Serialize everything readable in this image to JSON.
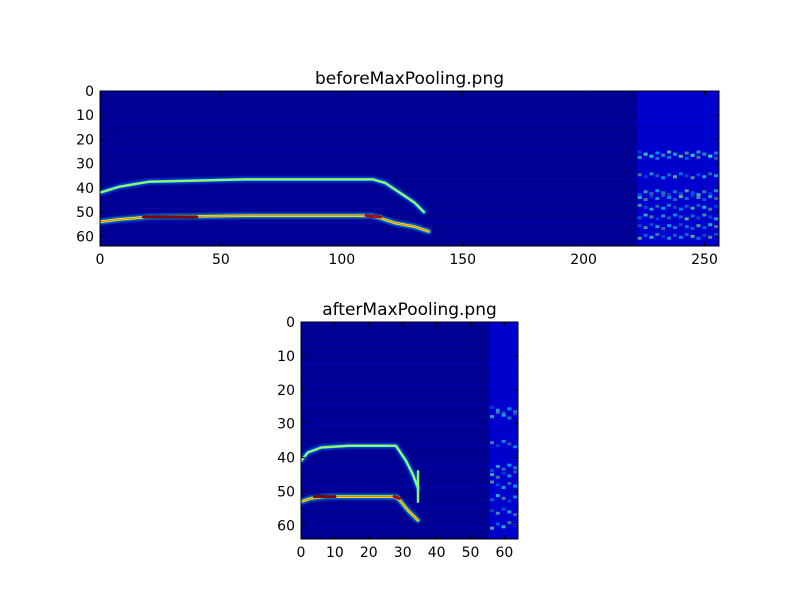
{
  "chart_data": [
    {
      "type": "heatmap",
      "title": "beforeMaxPooling.png",
      "colormap": "jet",
      "xlim": [
        0,
        256
      ],
      "ylim": [
        0,
        64
      ],
      "y_inverted": true,
      "xticks": [
        0,
        50,
        100,
        150,
        200,
        250
      ],
      "yticks": [
        0,
        10,
        20,
        30,
        40,
        50,
        60
      ],
      "features": [
        {
          "kind": "curve",
          "points": [
            [
              0,
              42
            ],
            [
              8,
              39.5
            ],
            [
              20,
              37.5
            ],
            [
              60,
              36.5
            ],
            [
              113,
              36.5
            ],
            [
              118,
              38
            ],
            [
              124,
              42
            ],
            [
              130,
              46
            ],
            [
              134,
              50
            ]
          ],
          "intensity": 0.45
        },
        {
          "kind": "curve",
          "points": [
            [
              0,
              54
            ],
            [
              8,
              53
            ],
            [
              20,
              52
            ],
            [
              60,
              51.5
            ],
            [
              112,
              51.5
            ],
            [
              116,
              52.5
            ],
            [
              122,
              54.5
            ],
            [
              130,
              56
            ],
            [
              136,
              58
            ]
          ],
          "intensity": 0.6
        },
        {
          "kind": "hot",
          "points": [
            [
              18,
              52
            ],
            [
              40,
              52
            ]
          ],
          "intensity": 1.0
        },
        {
          "kind": "hot",
          "points": [
            [
              110,
              51.5
            ],
            [
              116,
              52
            ]
          ],
          "intensity": 0.95
        },
        {
          "kind": "band",
          "x": [
            222,
            256
          ],
          "y": [
            0,
            64
          ],
          "intensity": 0.1
        },
        {
          "kind": "speckles",
          "x": [
            222,
            256
          ],
          "rows": [
            26,
            27,
            35,
            42,
            44,
            48,
            52,
            56,
            60
          ],
          "intensity": 0.35
        }
      ]
    },
    {
      "type": "heatmap",
      "title": "afterMaxPooling.png",
      "colormap": "jet",
      "xlim": [
        0,
        64
      ],
      "ylim": [
        0,
        64
      ],
      "y_inverted": true,
      "xticks": [
        0,
        10,
        20,
        30,
        40,
        50,
        60
      ],
      "yticks": [
        0,
        10,
        20,
        30,
        40,
        50,
        60
      ],
      "features": [
        {
          "kind": "curve",
          "points": [
            [
              0,
              41
            ],
            [
              2,
              38.5
            ],
            [
              6,
              37
            ],
            [
              14,
              36.5
            ],
            [
              28,
              36.5
            ],
            [
              29,
              38
            ],
            [
              31,
              41
            ],
            [
              33,
              45
            ],
            [
              34.5,
              49
            ]
          ],
          "intensity": 0.45
        },
        {
          "kind": "curve",
          "points": [
            [
              0,
              53
            ],
            [
              3,
              52
            ],
            [
              8,
              51.5
            ],
            [
              16,
              51.5
            ],
            [
              28,
              51.5
            ],
            [
              29.5,
              53
            ],
            [
              31.5,
              55.5
            ],
            [
              33,
              57
            ],
            [
              34.5,
              58.5
            ]
          ],
          "intensity": 0.6
        },
        {
          "kind": "hot",
          "points": [
            [
              4,
              51.5
            ],
            [
              10,
              51.5
            ]
          ],
          "intensity": 1.0
        },
        {
          "kind": "hot",
          "points": [
            [
              27.5,
              51.5
            ],
            [
              29,
              52
            ]
          ],
          "intensity": 0.95
        },
        {
          "kind": "curve",
          "points": [
            [
              34.5,
              44
            ],
            [
              34.5,
              53
            ]
          ],
          "intensity": 0.45
        },
        {
          "kind": "band",
          "x": [
            55.5,
            64
          ],
          "y": [
            0,
            64
          ],
          "intensity": 0.1
        },
        {
          "kind": "speckles",
          "x": [
            55.5,
            64
          ],
          "rows": [
            26,
            27.5,
            36,
            43,
            45,
            48,
            52,
            56,
            60
          ],
          "intensity": 0.35
        }
      ]
    }
  ]
}
